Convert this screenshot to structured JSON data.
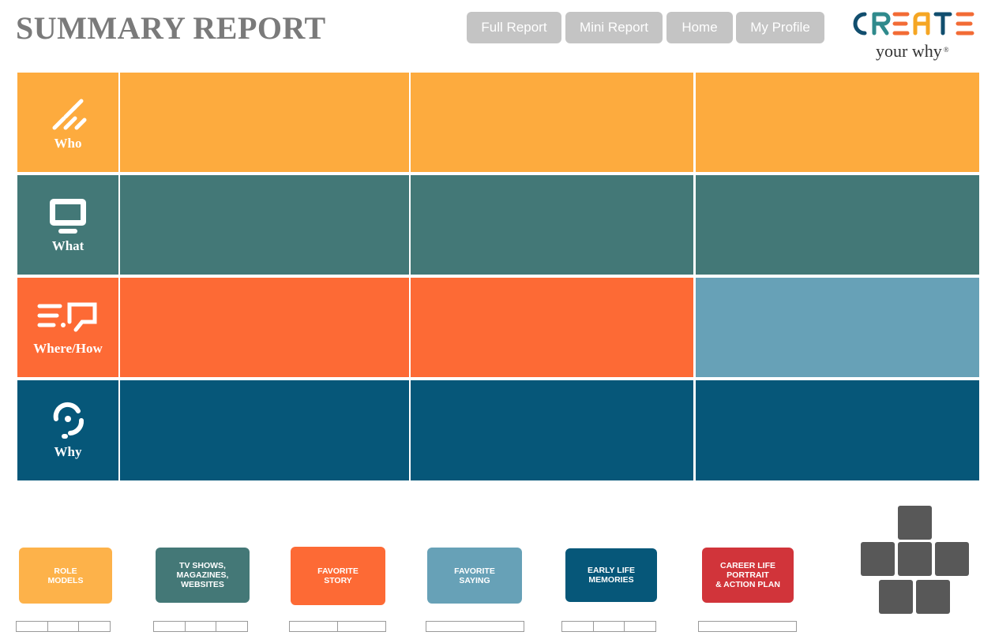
{
  "header": {
    "title": "SUMMARY REPORT",
    "nav": [
      {
        "label": "Full Report",
        "name": "full-report-button"
      },
      {
        "label": "Mini Report",
        "name": "mini-report-button"
      },
      {
        "label": "Home",
        "name": "home-button"
      },
      {
        "label": "My Profile",
        "name": "my-profile-button"
      }
    ]
  },
  "logo": {
    "letters": [
      "C",
      "R",
      "E",
      "A",
      "T",
      "E"
    ],
    "tagline": "your why",
    "mark": "®"
  },
  "grid": {
    "rows": [
      {
        "label": "Who",
        "icon": "who-icon",
        "color": "#fdab3e",
        "cells": [
          "#fdab3e",
          "#fdab3e",
          "#fdab3e"
        ]
      },
      {
        "label": "What",
        "icon": "monitor-icon",
        "color": "#437877",
        "cells": [
          "#437877",
          "#437877",
          "#437877"
        ]
      },
      {
        "label": "Where/How",
        "icon": "where-how-icon",
        "color": "#fd6a35",
        "cells": [
          "#fd6a35",
          "#fd6a35",
          "#67a1b7"
        ]
      },
      {
        "label": "Why",
        "icon": "why-icon",
        "color": "#065779",
        "cells": [
          "#065779",
          "#065779",
          "#065779"
        ]
      }
    ]
  },
  "cards": [
    {
      "label": "ROLE\nMODELS",
      "color": "#fdb24a",
      "pager": 3
    },
    {
      "label": "TV SHOWS,\nMAGAZINES,\nWEBSITES",
      "color": "#447877",
      "pager": 3
    },
    {
      "label": "FAVORITE\nSTORY",
      "color": "#fd6a35",
      "pager": 2
    },
    {
      "label": "FAVORITE\nSAYING",
      "color": "#67a1b7",
      "pager": 1
    },
    {
      "label": "EARLY LIFE\nMEMORIES",
      "color": "#065779",
      "pager": 3
    },
    {
      "label": "CAREER LIFE\nPORTRAIT\n& ACTION PLAN",
      "color": "#d1343a",
      "pager": 1
    }
  ],
  "colors": {
    "logo_teal": "#2f8a8c",
    "logo_orange": "#f26b35",
    "logo_yellow": "#f5a623",
    "logo_navy": "#114e6e",
    "keypad": "#585858"
  }
}
